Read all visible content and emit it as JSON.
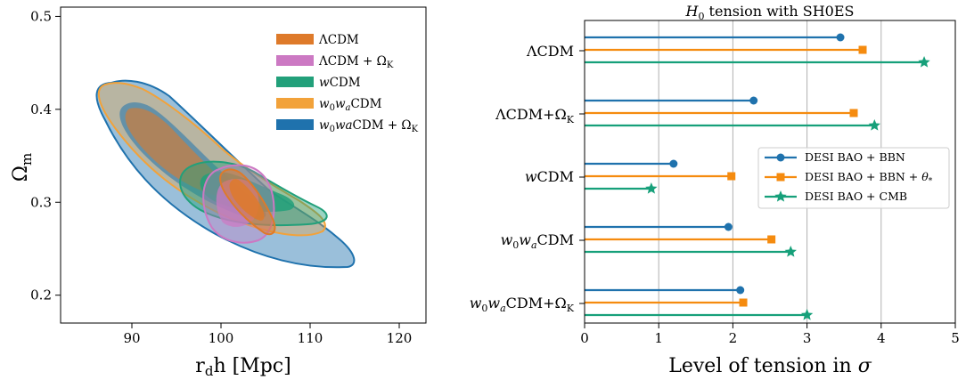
{
  "colors": {
    "lcdm": "#de7a2a",
    "lcdm_ok": "#cc79c3",
    "wcdm": "#22a07a",
    "w0wa": "#f2a23a",
    "w0wa_ok": "#1f72ad",
    "bbn": "#1f72ad",
    "theta": "#f58b0f",
    "cmb": "#16a07a"
  },
  "chart_data": [
    {
      "type": "contour",
      "xlabel": "r_d h [Mpc]",
      "ylabel": "Ω_m",
      "xlim": [
        82,
        123
      ],
      "ylim": [
        0.17,
        0.51
      ],
      "xticks": [
        "90",
        "100",
        "110",
        "120"
      ],
      "yticks": [
        "0.2",
        "0.3",
        "0.4",
        "0.5"
      ],
      "legend_position": "top-right",
      "series": [
        {
          "name": "ΛCDM",
          "color": "#de7a2a",
          "center": [
            101.5,
            0.298
          ],
          "contours": "68% and 95%"
        },
        {
          "name": "ΛCDM + Ω_K",
          "color": "#cc79c3",
          "center": [
            101.0,
            0.29
          ],
          "contours": "68% and 95%"
        },
        {
          "name": "wCDM",
          "color": "#22a07a",
          "center": [
            102.0,
            0.295
          ],
          "contours": "68% and 95%"
        },
        {
          "name": "w_0w_aCDM",
          "color": "#f2a23a",
          "center": [
            96.5,
            0.33
          ],
          "contours": "68% and 95%"
        },
        {
          "name": "w_0waCDM + Ω_K",
          "color": "#1f72ad",
          "center": [
            98.0,
            0.315
          ],
          "contours": "68% and 95%"
        }
      ]
    },
    {
      "type": "dot-plot",
      "title": "H_0 tension with SH0ES",
      "xlabel": "Level of tension in σ",
      "xlim": [
        0,
        5
      ],
      "xticks": [
        "0",
        "1",
        "2",
        "3",
        "4",
        "5"
      ],
      "grid": "vertical",
      "legend_position": "right",
      "categories": [
        "ΛCDM",
        "ΛCDM+Ω_K",
        "wCDM",
        "w_0w_aCDM",
        "w_0w_aCDM+Ω_K"
      ],
      "series": [
        {
          "name": "DESI BAO + BBN",
          "color": "#1f72ad",
          "marker": "circle",
          "values": [
            3.45,
            2.28,
            1.2,
            1.94,
            2.1
          ]
        },
        {
          "name": "DESI BAO + BBN + θ_*",
          "color": "#f58b0f",
          "marker": "square",
          "values": [
            3.75,
            3.63,
            1.98,
            2.52,
            2.14
          ]
        },
        {
          "name": "DESI BAO + CMB",
          "color": "#16a07a",
          "marker": "star",
          "values": [
            4.58,
            3.91,
            0.9,
            2.78,
            3.0
          ]
        }
      ]
    }
  ]
}
